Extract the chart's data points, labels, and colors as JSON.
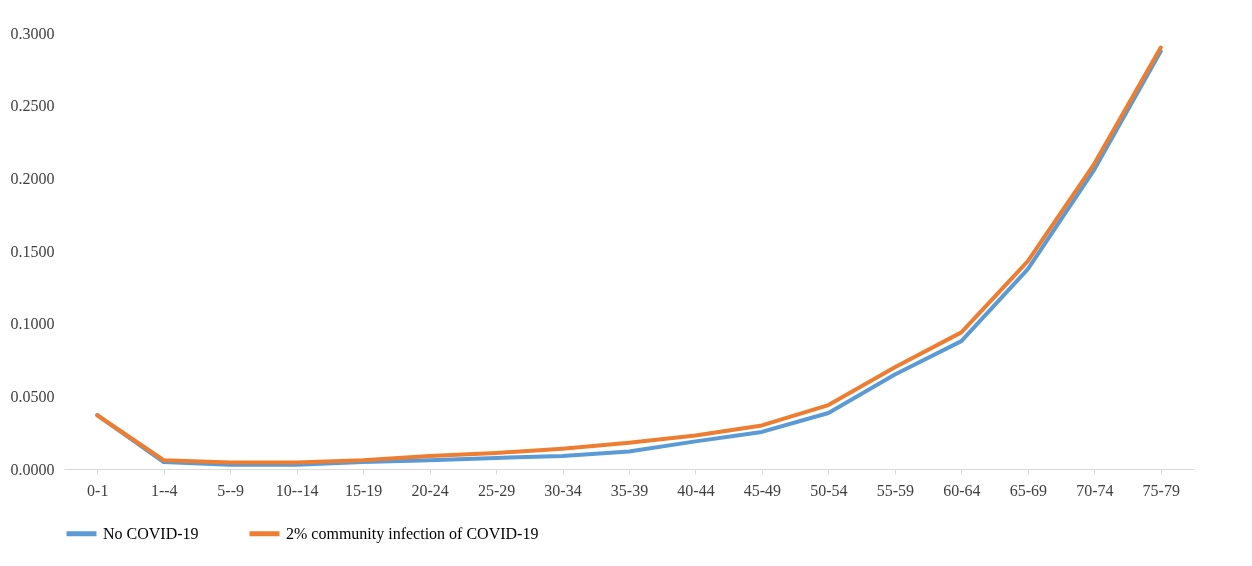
{
  "chart_data": {
    "type": "line",
    "categories": [
      "0-1",
      "1--4",
      "5--9",
      "10--14",
      "15-19",
      "20-24",
      "25-29",
      "30-34",
      "35-39",
      "40-44",
      "45-49",
      "50-54",
      "55-59",
      "60-64",
      "65-69",
      "70-74",
      "75-79"
    ],
    "series": [
      {
        "name": "No COVID-19",
        "color": "#5b9bd5",
        "values": [
          0.037,
          0.0048,
          0.003,
          0.003,
          0.0048,
          0.006,
          0.0076,
          0.009,
          0.012,
          0.019,
          0.0255,
          0.0385,
          0.065,
          0.088,
          0.1375,
          0.206,
          0.2875
        ]
      },
      {
        "name": "2% community  infection of COVID-19",
        "color": "#ed7d31",
        "values": [
          0.037,
          0.006,
          0.0045,
          0.0045,
          0.006,
          0.009,
          0.011,
          0.014,
          0.018,
          0.023,
          0.03,
          0.044,
          0.07,
          0.094,
          0.143,
          0.21,
          0.29
        ]
      }
    ],
    "ylim": [
      0,
      0.3
    ],
    "yticks": [
      {
        "value": 0,
        "label": "0.0000"
      },
      {
        "value": 0.05,
        "label": "0.0500"
      },
      {
        "value": 0.1,
        "label": "0.1000"
      },
      {
        "value": 0.15,
        "label": "0.1500"
      },
      {
        "value": 0.2,
        "label": "0.2000"
      },
      {
        "value": 0.25,
        "label": "0.2500"
      },
      {
        "value": 0.3,
        "label": "0.3000"
      }
    ],
    "grid": false,
    "legend": "bottom",
    "marker": "none",
    "line_style": "solid"
  }
}
